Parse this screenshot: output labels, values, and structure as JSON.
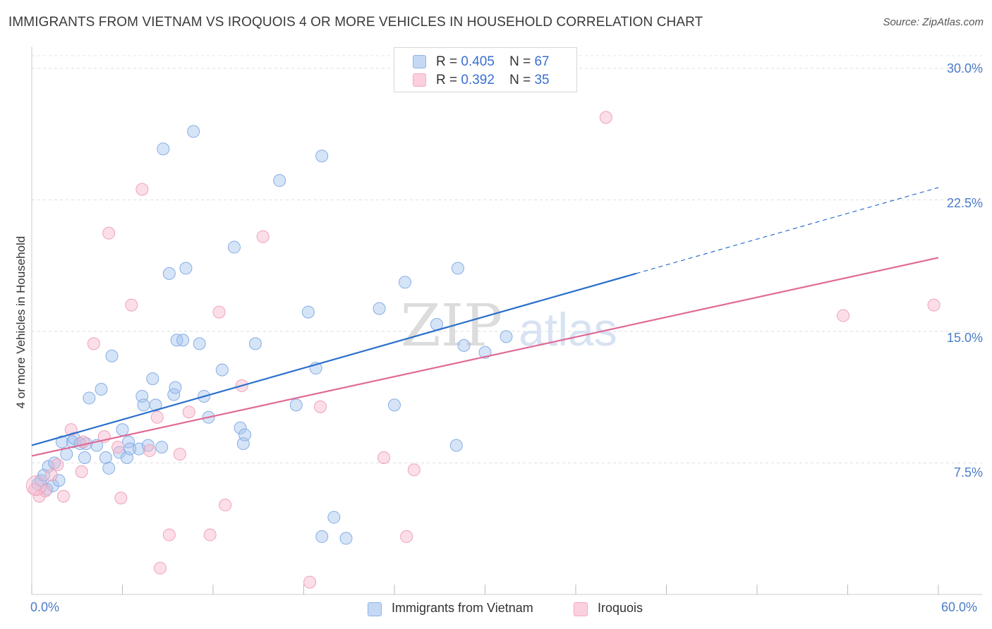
{
  "header": {
    "title": "IMMIGRANTS FROM VIETNAM VS IROQUOIS 4 OR MORE VEHICLES IN HOUSEHOLD CORRELATION CHART",
    "source": "Source: ZipAtlas.com"
  },
  "watermark": {
    "zip": "ZIP",
    "atlas": "atlas"
  },
  "legend": {
    "series": [
      {
        "r_label": "R =",
        "r_value": "0.405",
        "n_label": "N =",
        "n_value": "67"
      },
      {
        "r_label": "R =",
        "r_value": "0.392",
        "n_label": "N =",
        "n_value": "35"
      }
    ]
  },
  "chart_data": {
    "type": "scatter",
    "title": "IMMIGRANTS FROM VIETNAM VS IROQUOIS 4 OR MORE VEHICLES IN HOUSEHOLD CORRELATION CHART",
    "xlabel": "",
    "ylabel": "4 or more Vehicles in Household",
    "xlim": [
      0,
      60
    ],
    "ylim": [
      0,
      31
    ],
    "x_tick_labels": [
      "0.0%",
      "60.0%"
    ],
    "y_ticks": [
      7.5,
      15.0,
      22.5,
      30.0
    ],
    "y_tick_labels": [
      "7.5%",
      "15.0%",
      "22.5%",
      "30.0%"
    ],
    "grid": "horizontal dashed",
    "legend_position": "top-center and bottom",
    "series": [
      {
        "name": "Immigrants from Vietnam",
        "color": "#8fb4e8",
        "line_color": "#2a6fcc",
        "R": 0.405,
        "N": 67,
        "trend": {
          "x0": 0,
          "y0": 8.5,
          "x1": 40,
          "y1": 18.3,
          "dash_to_x": 60,
          "dash_to_y": 23.2
        },
        "points": [
          [
            0.4,
            6.3
          ],
          [
            0.6,
            6.5
          ],
          [
            0.8,
            6.8
          ],
          [
            1.0,
            6.0
          ],
          [
            1.1,
            7.3
          ],
          [
            1.4,
            6.2
          ],
          [
            1.5,
            7.5
          ],
          [
            1.8,
            6.5
          ],
          [
            2.0,
            8.7
          ],
          [
            2.3,
            8.0
          ],
          [
            2.7,
            8.7
          ],
          [
            2.8,
            8.9
          ],
          [
            3.2,
            8.6
          ],
          [
            3.5,
            7.8
          ],
          [
            3.6,
            8.6
          ],
          [
            3.8,
            11.2
          ],
          [
            4.3,
            8.5
          ],
          [
            4.6,
            11.7
          ],
          [
            4.9,
            7.8
          ],
          [
            5.1,
            7.2
          ],
          [
            5.3,
            13.6
          ],
          [
            5.8,
            8.1
          ],
          [
            6.0,
            9.4
          ],
          [
            6.3,
            7.8
          ],
          [
            6.4,
            8.7
          ],
          [
            6.5,
            8.3
          ],
          [
            7.1,
            8.3
          ],
          [
            7.3,
            11.3
          ],
          [
            7.4,
            10.8
          ],
          [
            7.7,
            8.5
          ],
          [
            8.0,
            12.3
          ],
          [
            8.2,
            10.8
          ],
          [
            8.6,
            8.4
          ],
          [
            8.7,
            25.4
          ],
          [
            9.1,
            18.3
          ],
          [
            9.4,
            11.4
          ],
          [
            9.5,
            11.8
          ],
          [
            9.6,
            14.5
          ],
          [
            10.0,
            14.5
          ],
          [
            10.2,
            18.6
          ],
          [
            10.7,
            26.4
          ],
          [
            11.1,
            14.3
          ],
          [
            11.4,
            11.3
          ],
          [
            11.7,
            10.1
          ],
          [
            12.6,
            12.8
          ],
          [
            13.4,
            19.8
          ],
          [
            13.8,
            9.5
          ],
          [
            14.0,
            8.6
          ],
          [
            14.1,
            9.1
          ],
          [
            14.8,
            14.3
          ],
          [
            16.4,
            23.6
          ],
          [
            17.5,
            10.8
          ],
          [
            18.3,
            16.1
          ],
          [
            18.8,
            12.9
          ],
          [
            19.2,
            3.3
          ],
          [
            19.2,
            25.0
          ],
          [
            20.0,
            4.4
          ],
          [
            20.8,
            3.2
          ],
          [
            23.0,
            16.3
          ],
          [
            24.0,
            10.8
          ],
          [
            24.7,
            17.8
          ],
          [
            26.8,
            15.4
          ],
          [
            28.1,
            8.5
          ],
          [
            28.2,
            18.6
          ],
          [
            28.6,
            14.2
          ],
          [
            30.0,
            13.8
          ],
          [
            31.4,
            14.7
          ]
        ]
      },
      {
        "name": "Iroquois",
        "color": "#f4a8c0",
        "line_color": "#e06a95",
        "R": 0.392,
        "N": 35,
        "trend": {
          "x0": 0,
          "y0": 7.9,
          "x1": 60,
          "y1": 19.2
        },
        "points": [
          [
            0.2,
            6.0
          ],
          [
            0.5,
            5.6
          ],
          [
            0.9,
            5.9
          ],
          [
            1.3,
            6.8
          ],
          [
            1.7,
            7.4
          ],
          [
            2.1,
            5.6
          ],
          [
            2.6,
            9.4
          ],
          [
            3.3,
            7.0
          ],
          [
            3.4,
            8.7
          ],
          [
            4.1,
            14.3
          ],
          [
            4.8,
            9.0
          ],
          [
            5.1,
            20.6
          ],
          [
            5.7,
            8.4
          ],
          [
            5.9,
            5.5
          ],
          [
            6.6,
            16.5
          ],
          [
            7.3,
            23.1
          ],
          [
            7.8,
            8.2
          ],
          [
            8.3,
            10.1
          ],
          [
            8.5,
            1.5
          ],
          [
            9.1,
            3.4
          ],
          [
            9.8,
            8.0
          ],
          [
            10.4,
            10.4
          ],
          [
            11.8,
            3.4
          ],
          [
            12.4,
            16.1
          ],
          [
            12.8,
            5.1
          ],
          [
            13.9,
            11.9
          ],
          [
            15.3,
            20.4
          ],
          [
            18.4,
            0.7
          ],
          [
            19.1,
            10.7
          ],
          [
            23.3,
            7.8
          ],
          [
            24.8,
            3.3
          ],
          [
            25.3,
            7.1
          ],
          [
            38.0,
            27.2
          ],
          [
            53.7,
            15.9
          ],
          [
            59.7,
            16.5
          ]
        ]
      }
    ]
  }
}
